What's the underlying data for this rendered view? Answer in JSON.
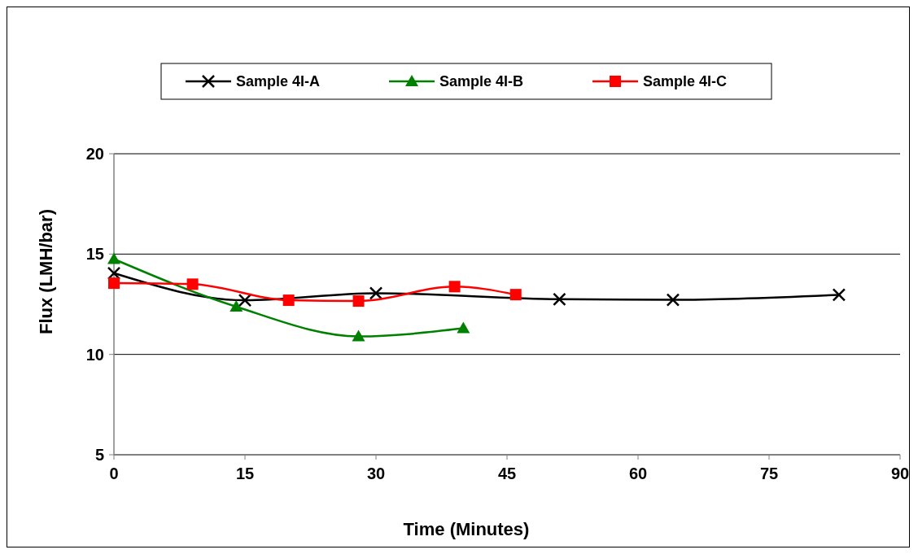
{
  "chart_data": {
    "type": "line",
    "xlabel": "Time (Minutes)",
    "ylabel": "Flux (LMH/bar)",
    "xlim": [
      0,
      90
    ],
    "xticks": [
      0,
      15,
      30,
      45,
      60,
      75,
      90
    ],
    "ylim": [
      5,
      20
    ],
    "yticks": [
      5,
      10,
      15,
      20
    ],
    "grid": "y",
    "legend": "top",
    "line_style": "solid",
    "series": [
      {
        "name": "Sample 4I-A",
        "color": "#000000",
        "marker": "cross",
        "x": [
          0,
          15,
          30,
          51,
          64,
          83
        ],
        "values": [
          14.05,
          12.7,
          13.05,
          12.75,
          12.72,
          12.97
        ]
      },
      {
        "name": "Sample 4I-B",
        "color": "#008000",
        "marker": "triangle",
        "x": [
          0,
          14,
          28,
          40
        ],
        "values": [
          14.75,
          12.38,
          10.9,
          11.3
        ]
      },
      {
        "name": "Sample 4I-C",
        "color": "#ff0000",
        "marker": "square",
        "x": [
          0,
          9,
          20,
          28,
          39,
          46
        ],
        "values": [
          13.55,
          13.5,
          12.7,
          12.66,
          13.38,
          12.98
        ]
      }
    ]
  }
}
